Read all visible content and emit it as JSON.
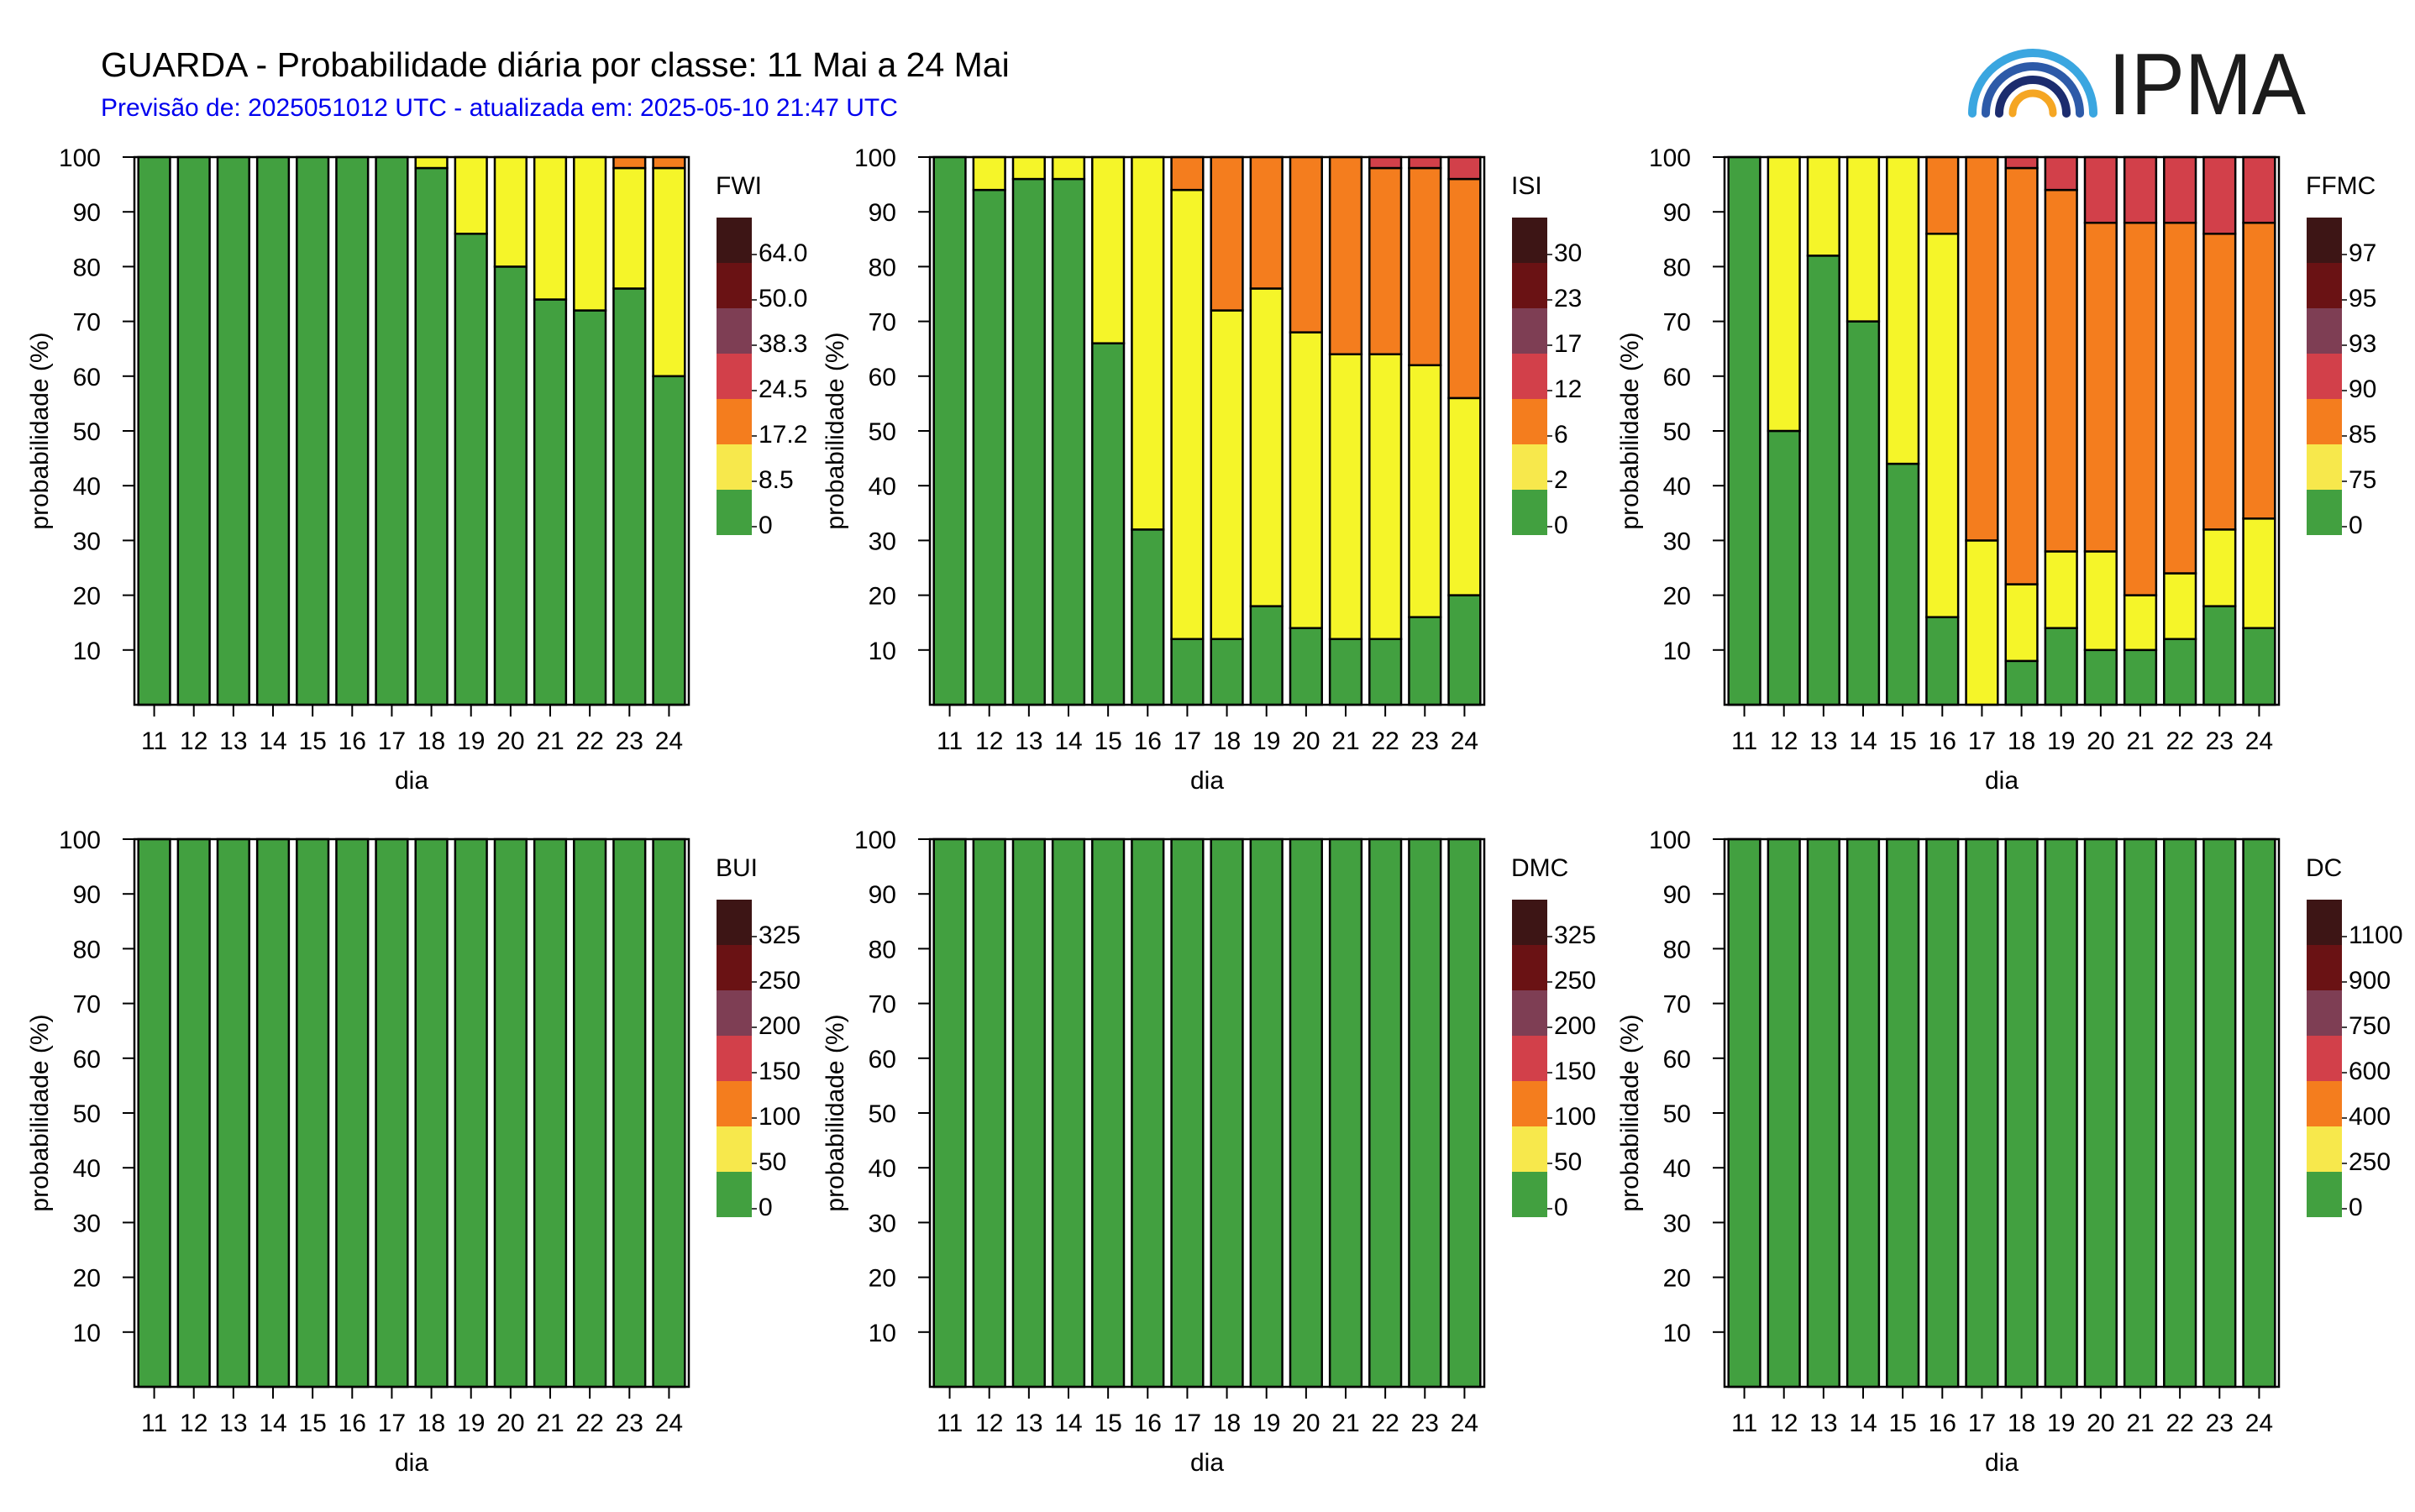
{
  "header": {
    "title": "GUARDA - Probabilidade diária por classe: 11 Mai a 24 Mai",
    "subtitle": "Previsão de: 2025051012 UTC - atualizada em: 2025-05-10 21:47 UTC",
    "logo_text": "IPMA"
  },
  "colors": {
    "classes": [
      "#42a040",
      "#f5f529",
      "#f47d1e",
      "#d2404a",
      "#7e3e54",
      "#6a1214",
      "#3d1515"
    ],
    "legend_swatches": [
      "#42a040",
      "#f7e84c",
      "#f47d1e",
      "#d2404a",
      "#7e3e54",
      "#6a1214",
      "#3d1515"
    ],
    "logo_arcs": [
      "#3aa6e0",
      "#2d5aa8",
      "#1c2c6e",
      "#f5a623"
    ]
  },
  "chart_data": [
    {
      "type": "bar",
      "stacked": true,
      "categories": [
        "11",
        "12",
        "13",
        "14",
        "15",
        "16",
        "17",
        "18",
        "19",
        "20",
        "21",
        "22",
        "23",
        "24"
      ],
      "xlabel": "dia",
      "ylabel": "probabilidade (%)",
      "ylim": [
        0,
        100
      ],
      "yticks": [
        10,
        20,
        30,
        40,
        50,
        60,
        70,
        80,
        90,
        100
      ],
      "legend_title": "FWI",
      "legend_labels": [
        "0",
        "8.5",
        "17.2",
        "24.5",
        "38.3",
        "50.0",
        "64.0"
      ],
      "series": [
        {
          "values": [
            100,
            100,
            100,
            100,
            100,
            100,
            100,
            98,
            86,
            80,
            74,
            72,
            76,
            60
          ]
        },
        {
          "values": [
            0,
            0,
            0,
            0,
            0,
            0,
            0,
            2,
            14,
            20,
            26,
            28,
            22,
            38
          ]
        },
        {
          "values": [
            0,
            0,
            0,
            0,
            0,
            0,
            0,
            0,
            0,
            0,
            0,
            0,
            2,
            2
          ]
        },
        {
          "values": [
            0,
            0,
            0,
            0,
            0,
            0,
            0,
            0,
            0,
            0,
            0,
            0,
            0,
            0
          ]
        }
      ]
    },
    {
      "type": "bar",
      "stacked": true,
      "categories": [
        "11",
        "12",
        "13",
        "14",
        "15",
        "16",
        "17",
        "18",
        "19",
        "20",
        "21",
        "22",
        "23",
        "24"
      ],
      "xlabel": "dia",
      "ylabel": "probabilidade (%)",
      "ylim": [
        0,
        100
      ],
      "yticks": [
        10,
        20,
        30,
        40,
        50,
        60,
        70,
        80,
        90,
        100
      ],
      "legend_title": "ISI",
      "legend_labels": [
        "0",
        "2",
        "6",
        "12",
        "17",
        "23",
        "30"
      ],
      "series": [
        {
          "values": [
            100,
            94,
            96,
            96,
            66,
            32,
            12,
            12,
            18,
            14,
            12,
            12,
            16,
            20
          ]
        },
        {
          "values": [
            0,
            6,
            4,
            4,
            34,
            68,
            82,
            60,
            58,
            54,
            52,
            52,
            46,
            36
          ]
        },
        {
          "values": [
            0,
            0,
            0,
            0,
            0,
            0,
            6,
            28,
            24,
            32,
            36,
            34,
            36,
            40
          ]
        },
        {
          "values": [
            0,
            0,
            0,
            0,
            0,
            0,
            0,
            0,
            0,
            0,
            0,
            2,
            2,
            4
          ]
        }
      ]
    },
    {
      "type": "bar",
      "stacked": true,
      "categories": [
        "11",
        "12",
        "13",
        "14",
        "15",
        "16",
        "17",
        "18",
        "19",
        "20",
        "21",
        "22",
        "23",
        "24"
      ],
      "xlabel": "dia",
      "ylabel": "probabilidade (%)",
      "ylim": [
        0,
        100
      ],
      "yticks": [
        10,
        20,
        30,
        40,
        50,
        60,
        70,
        80,
        90,
        100
      ],
      "legend_title": "FFMC",
      "legend_labels": [
        "0",
        "75",
        "85",
        "90",
        "93",
        "95",
        "97"
      ],
      "series": [
        {
          "values": [
            100,
            50,
            82,
            70,
            44,
            16,
            0,
            8,
            14,
            10,
            10,
            12,
            18,
            14
          ]
        },
        {
          "values": [
            0,
            50,
            18,
            30,
            56,
            70,
            30,
            14,
            14,
            18,
            10,
            12,
            14,
            20
          ]
        },
        {
          "values": [
            0,
            0,
            0,
            0,
            0,
            14,
            70,
            76,
            66,
            60,
            68,
            64,
            54,
            54
          ]
        },
        {
          "values": [
            0,
            0,
            0,
            0,
            0,
            0,
            0,
            2,
            6,
            12,
            12,
            12,
            14,
            12
          ]
        }
      ]
    },
    {
      "type": "bar",
      "stacked": true,
      "categories": [
        "11",
        "12",
        "13",
        "14",
        "15",
        "16",
        "17",
        "18",
        "19",
        "20",
        "21",
        "22",
        "23",
        "24"
      ],
      "xlabel": "dia",
      "ylabel": "probabilidade (%)",
      "ylim": [
        0,
        100
      ],
      "yticks": [
        10,
        20,
        30,
        40,
        50,
        60,
        70,
        80,
        90,
        100
      ],
      "legend_title": "BUI",
      "legend_labels": [
        "0",
        "50",
        "100",
        "150",
        "200",
        "250",
        "325"
      ],
      "series": [
        {
          "values": [
            100,
            100,
            100,
            100,
            100,
            100,
            100,
            100,
            100,
            100,
            100,
            100,
            100,
            100
          ]
        }
      ]
    },
    {
      "type": "bar",
      "stacked": true,
      "categories": [
        "11",
        "12",
        "13",
        "14",
        "15",
        "16",
        "17",
        "18",
        "19",
        "20",
        "21",
        "22",
        "23",
        "24"
      ],
      "xlabel": "dia",
      "ylabel": "probabilidade (%)",
      "ylim": [
        0,
        100
      ],
      "yticks": [
        10,
        20,
        30,
        40,
        50,
        60,
        70,
        80,
        90,
        100
      ],
      "legend_title": "DMC",
      "legend_labels": [
        "0",
        "50",
        "100",
        "150",
        "200",
        "250",
        "325"
      ],
      "series": [
        {
          "values": [
            100,
            100,
            100,
            100,
            100,
            100,
            100,
            100,
            100,
            100,
            100,
            100,
            100,
            100
          ]
        }
      ]
    },
    {
      "type": "bar",
      "stacked": true,
      "categories": [
        "11",
        "12",
        "13",
        "14",
        "15",
        "16",
        "17",
        "18",
        "19",
        "20",
        "21",
        "22",
        "23",
        "24"
      ],
      "xlabel": "dia",
      "ylabel": "probabilidade (%)",
      "ylim": [
        0,
        100
      ],
      "yticks": [
        10,
        20,
        30,
        40,
        50,
        60,
        70,
        80,
        90,
        100
      ],
      "legend_title": "DC",
      "legend_labels": [
        "0",
        "250",
        "400",
        "600",
        "750",
        "900",
        "1100"
      ],
      "series": [
        {
          "values": [
            100,
            100,
            100,
            100,
            100,
            100,
            100,
            100,
            100,
            100,
            100,
            100,
            100,
            100
          ]
        }
      ]
    }
  ]
}
